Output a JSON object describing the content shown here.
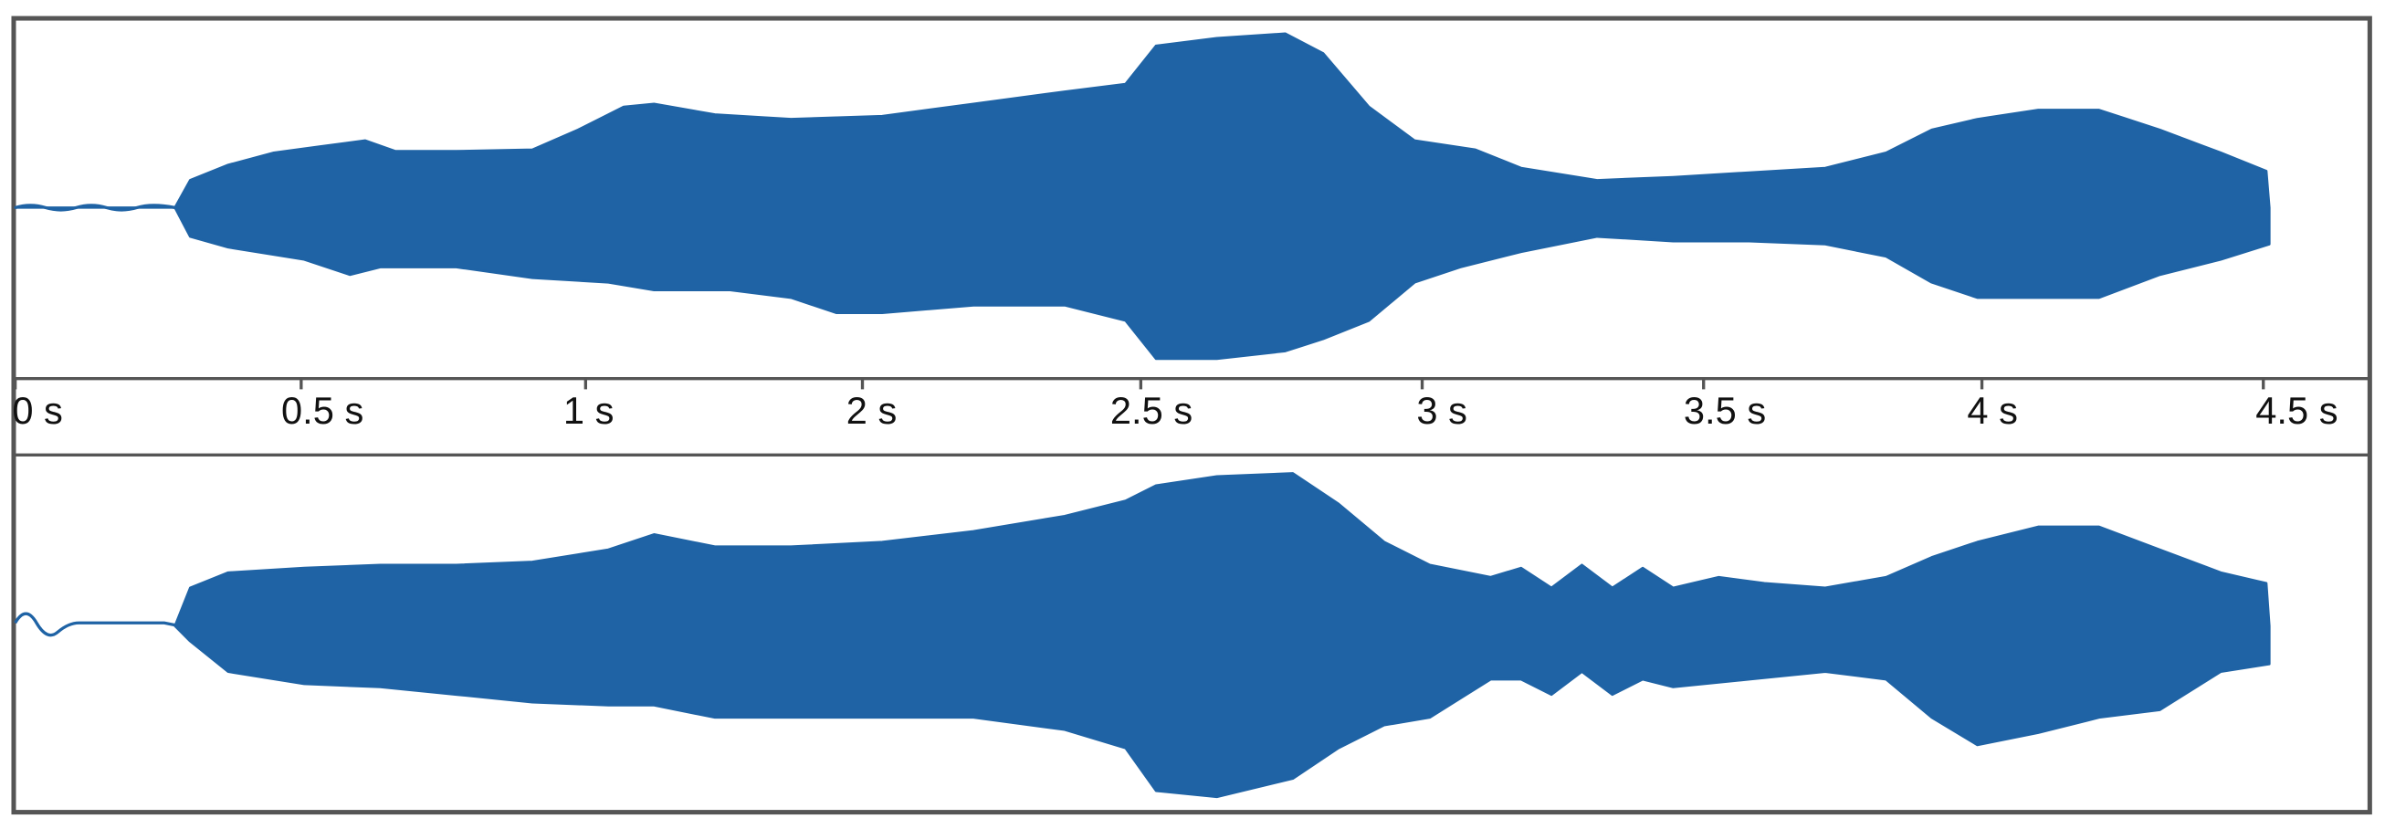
{
  "time_axis": {
    "labels": [
      "0 s",
      "0.5 s",
      "1 s",
      "2 s",
      "2.5 s",
      "3 s",
      "3.5 s",
      "4 s",
      "4.5 s"
    ]
  }
}
